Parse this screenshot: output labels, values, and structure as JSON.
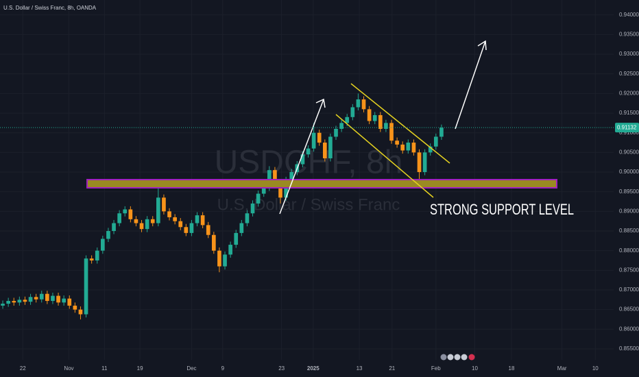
{
  "chart_data": {
    "type": "candlestick",
    "title": "U.S. Dollar / Swiss Franc, 8h, OANDA",
    "watermark_symbol": "USDCHF, 8h",
    "watermark_name": "U.S. Dollar / Swiss Franc",
    "annotation": "STRONG SUPPORT LEVEL",
    "last_price": 0.91132,
    "up_color": "#22ab94",
    "down_color": "#f7931a",
    "grid": true,
    "xlim": [
      -0.5,
      110
    ],
    "ylim": [
      0.8522,
      0.9438
    ],
    "xticks": [
      {
        "value": 3.6,
        "label": "22"
      },
      {
        "value": 11.9,
        "label": "Nov"
      },
      {
        "value": 18.3,
        "label": "11"
      },
      {
        "value": 24.7,
        "label": "19"
      },
      {
        "value": 34,
        "label": "Dec"
      },
      {
        "value": 39.6,
        "label": "9"
      },
      {
        "value": 50.2,
        "label": "23"
      },
      {
        "value": 55.9,
        "label": "2025"
      },
      {
        "value": 64.2,
        "label": "13"
      },
      {
        "value": 70.1,
        "label": "21"
      },
      {
        "value": 78,
        "label": "Feb"
      },
      {
        "value": 85,
        "label": "10"
      },
      {
        "value": 91.6,
        "label": "18"
      },
      {
        "value": 100.7,
        "label": "Mar"
      },
      {
        "value": 106.7,
        "label": "10"
      }
    ],
    "yticks": [
      {
        "value": 0.855,
        "label": "0.85500"
      },
      {
        "value": 0.86,
        "label": "0.86000"
      },
      {
        "value": 0.865,
        "label": "0.86500"
      },
      {
        "value": 0.87,
        "label": "0.87000"
      },
      {
        "value": 0.875,
        "label": "0.87500"
      },
      {
        "value": 0.88,
        "label": "0.88000"
      },
      {
        "value": 0.885,
        "label": "0.88500"
      },
      {
        "value": 0.89,
        "label": "0.89000"
      },
      {
        "value": 0.895,
        "label": "0.89500"
      },
      {
        "value": 0.9,
        "label": "0.90000"
      },
      {
        "value": 0.905,
        "label": "0.90500"
      },
      {
        "value": 0.91,
        "label": "0.91000"
      },
      {
        "value": 0.915,
        "label": "0.91500"
      },
      {
        "value": 0.92,
        "label": "0.92000"
      },
      {
        "value": 0.925,
        "label": "0.92500"
      },
      {
        "value": 0.93,
        "label": "0.93000"
      },
      {
        "value": 0.935,
        "label": "0.93500"
      },
      {
        "value": 0.94,
        "label": "0.94000"
      }
    ],
    "open": [
      0.866,
      0.8665,
      0.8672,
      0.8668,
      0.8675,
      0.867,
      0.8682,
      0.8676,
      0.869,
      0.8672,
      0.8685,
      0.8668,
      0.8678,
      0.866,
      0.865,
      0.8638,
      0.878,
      0.8775,
      0.88,
      0.883,
      0.885,
      0.887,
      0.8895,
      0.8905,
      0.888,
      0.887,
      0.8855,
      0.888,
      0.887,
      0.8935,
      0.89,
      0.8885,
      0.8875,
      0.886,
      0.8845,
      0.887,
      0.889,
      0.8865,
      0.884,
      0.88,
      0.876,
      0.879,
      0.8815,
      0.8845,
      0.887,
      0.8895,
      0.892,
      0.8945,
      0.896,
      0.9005,
      0.897,
      0.8935,
      0.898,
      0.9,
      0.902,
      0.9045,
      0.906,
      0.91,
      0.9075,
      0.9035,
      0.909,
      0.911,
      0.9125,
      0.914,
      0.9165,
      0.9185,
      0.916,
      0.913,
      0.9145,
      0.911,
      0.9125,
      0.908,
      0.907,
      0.9055,
      0.9075,
      0.905,
      0.9,
      0.905,
      0.9065,
      0.909
    ],
    "high": [
      0.8673,
      0.868,
      0.868,
      0.8683,
      0.8683,
      0.869,
      0.869,
      0.8698,
      0.8698,
      0.8693,
      0.8693,
      0.8686,
      0.8686,
      0.8668,
      0.8658,
      0.8788,
      0.8788,
      0.8808,
      0.8838,
      0.8858,
      0.8878,
      0.8903,
      0.8913,
      0.8913,
      0.8888,
      0.8878,
      0.8888,
      0.8888,
      0.896,
      0.8943,
      0.8908,
      0.8893,
      0.8883,
      0.8868,
      0.8878,
      0.8898,
      0.8898,
      0.8873,
      0.8848,
      0.8808,
      0.8798,
      0.8823,
      0.8853,
      0.8878,
      0.8903,
      0.8928,
      0.8953,
      0.8968,
      0.9015,
      0.9013,
      0.8978,
      0.8988,
      0.9008,
      0.9028,
      0.9053,
      0.9068,
      0.9125,
      0.9108,
      0.9083,
      0.9098,
      0.9118,
      0.9133,
      0.9148,
      0.9173,
      0.92,
      0.9193,
      0.9168,
      0.9153,
      0.9153,
      0.9133,
      0.9133,
      0.9088,
      0.9078,
      0.9083,
      0.9083,
      0.9058,
      0.9058,
      0.9073,
      0.9098,
      0.9121
    ],
    "low": [
      0.8652,
      0.8657,
      0.866,
      0.866,
      0.8662,
      0.8662,
      0.8668,
      0.8668,
      0.8664,
      0.8664,
      0.866,
      0.866,
      0.8652,
      0.8642,
      0.8625,
      0.863,
      0.8767,
      0.8767,
      0.8792,
      0.8822,
      0.8842,
      0.8862,
      0.8887,
      0.8872,
      0.8862,
      0.8847,
      0.8847,
      0.8862,
      0.8862,
      0.8892,
      0.8877,
      0.8867,
      0.8852,
      0.8837,
      0.8837,
      0.8862,
      0.8857,
      0.8832,
      0.8792,
      0.8745,
      0.8752,
      0.8782,
      0.8807,
      0.8837,
      0.8862,
      0.8887,
      0.8912,
      0.8937,
      0.8952,
      0.8962,
      0.892,
      0.8927,
      0.8972,
      0.8992,
      0.9012,
      0.9037,
      0.9052,
      0.9067,
      0.9027,
      0.9027,
      0.9082,
      0.9102,
      0.9117,
      0.9132,
      0.9157,
      0.9152,
      0.9122,
      0.9122,
      0.9102,
      0.9102,
      0.9072,
      0.9062,
      0.9047,
      0.9047,
      0.9042,
      0.898,
      0.8992,
      0.9042,
      0.9057,
      0.9082
    ],
    "close": [
      0.8665,
      0.8672,
      0.8668,
      0.8675,
      0.867,
      0.8682,
      0.8676,
      0.869,
      0.8672,
      0.8685,
      0.8668,
      0.8678,
      0.866,
      0.865,
      0.8638,
      0.878,
      0.8775,
      0.88,
      0.883,
      0.885,
      0.887,
      0.8895,
      0.8905,
      0.888,
      0.887,
      0.8855,
      0.888,
      0.887,
      0.8935,
      0.89,
      0.8885,
      0.8875,
      0.886,
      0.8845,
      0.887,
      0.889,
      0.8865,
      0.884,
      0.88,
      0.876,
      0.879,
      0.8815,
      0.8845,
      0.887,
      0.8895,
      0.892,
      0.8945,
      0.896,
      0.9005,
      0.897,
      0.8935,
      0.898,
      0.9,
      0.902,
      0.9045,
      0.906,
      0.91,
      0.9075,
      0.9035,
      0.909,
      0.911,
      0.9125,
      0.914,
      0.9165,
      0.9185,
      0.916,
      0.913,
      0.9145,
      0.911,
      0.9125,
      0.908,
      0.907,
      0.9055,
      0.9075,
      0.905,
      0.9,
      0.905,
      0.9065,
      0.909,
      0.9113
    ]
  }
}
